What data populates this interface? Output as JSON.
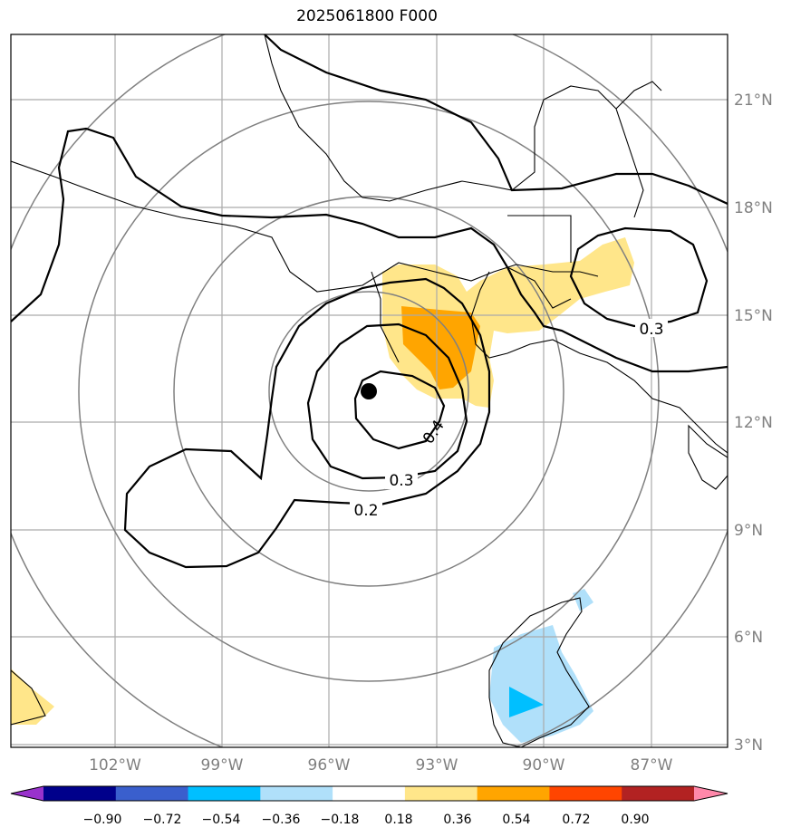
{
  "title": "2025061800 F000",
  "lat_labels": [
    "21°N",
    "18°N",
    "15°N",
    "12°N",
    "9°N",
    "6°N",
    "3°N"
  ],
  "lon_labels": [
    "102°W",
    "99°W",
    "96°W",
    "93°W",
    "90°W",
    "87°W"
  ],
  "contour_labels": [
    "0.2",
    "0.3",
    "0.4",
    "0.3"
  ],
  "colorbar": {
    "tick_labels": [
      "−0.90",
      "−0.72",
      "−0.54",
      "−0.36",
      "−0.18",
      "0.18",
      "0.36",
      "0.54",
      "0.72",
      "0.90"
    ],
    "colors": [
      "#9932cc",
      "#00008b",
      "#3a5fcd",
      "#00bfff",
      "#b0e0fa",
      "#ffffff",
      "#ffe68a",
      "#ffa500",
      "#ff4500",
      "#b22222",
      "#ff88aa"
    ]
  },
  "center_marker": "storm-center"
}
